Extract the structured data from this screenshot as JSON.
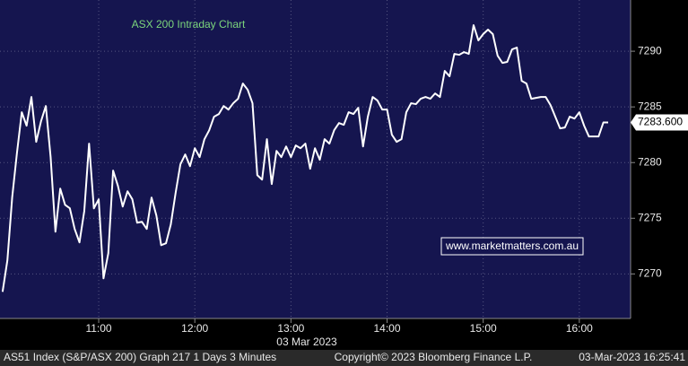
{
  "chart_data": {
    "type": "line",
    "title": "ASX 200 Intraday Chart",
    "watermark": "www.marketmatters.com.au",
    "x_date_label": "03 Mar 2023",
    "footer": {
      "security": "AS51 Index (S&P/ASX 200) Graph 217 1 Days 3 Minutes",
      "copyright": "Copyright© 2023 Bloomberg Finance L.P.",
      "timestamp": "03-Mar-2023 16:25:41"
    },
    "last_price": {
      "value": 7283.6,
      "label": "7283.600"
    },
    "x": [
      600,
      603,
      606,
      609,
      612,
      615,
      618,
      621,
      624,
      627,
      630,
      633,
      636,
      639,
      642,
      645,
      648,
      651,
      654,
      657,
      660,
      663,
      666,
      669,
      672,
      675,
      678,
      681,
      684,
      687,
      690,
      693,
      696,
      699,
      702,
      705,
      708,
      711,
      714,
      717,
      720,
      723,
      726,
      729,
      732,
      735,
      738,
      741,
      744,
      747,
      750,
      753,
      756,
      759,
      762,
      765,
      768,
      771,
      774,
      777,
      780,
      783,
      786,
      789,
      792,
      795,
      798,
      801,
      804,
      807,
      810,
      813,
      816,
      819,
      822,
      825,
      828,
      831,
      834,
      837,
      840,
      843,
      846,
      849,
      852,
      855,
      858,
      861,
      864,
      867,
      870,
      873,
      876,
      879,
      882,
      885,
      888,
      891,
      894,
      897,
      900,
      903,
      906,
      909,
      912,
      915,
      918,
      921,
      924,
      927,
      930,
      933,
      936,
      939,
      942,
      945,
      948,
      951,
      954,
      957,
      960,
      963,
      966,
      969,
      972,
      975,
      978
    ],
    "series": [
      {
        "name": "AS51 Index",
        "color": "#ffffff",
        "values": [
          7268.39,
          7271.21,
          7276.86,
          7280.89,
          7284.52,
          7283.31,
          7285.89,
          7281.86,
          7283.71,
          7285.08,
          7280.49,
          7273.79,
          7277.66,
          7276.21,
          7275.89,
          7274.04,
          7272.83,
          7275.65,
          7281.7,
          7275.89,
          7276.7,
          7269.6,
          7271.86,
          7279.28,
          7277.91,
          7276.05,
          7277.42,
          7276.7,
          7274.6,
          7274.68,
          7274.04,
          7276.86,
          7275.25,
          7272.58,
          7272.75,
          7274.44,
          7277.26,
          7279.84,
          7280.73,
          7279.68,
          7281.29,
          7280.49,
          7282.1,
          7282.91,
          7284.12,
          7284.36,
          7285.08,
          7284.76,
          7285.33,
          7285.73,
          7287.1,
          7286.54,
          7285.33,
          7278.87,
          7278.47,
          7282.1,
          7278.07,
          7281.05,
          7280.49,
          7281.45,
          7280.49,
          7281.54,
          7281.29,
          7281.7,
          7279.44,
          7281.29,
          7280.25,
          7282.1,
          7281.7,
          7282.91,
          7283.55,
          7283.39,
          7284.52,
          7284.36,
          7284.92,
          7281.45,
          7284.12,
          7285.89,
          7285.57,
          7284.76,
          7284.76,
          7282.5,
          7281.86,
          7282.1,
          7284.52,
          7285.33,
          7285.25,
          7285.73,
          7285.89,
          7285.73,
          7286.21,
          7285.89,
          7288.23,
          7287.75,
          7289.76,
          7289.68,
          7289.92,
          7289.76,
          7292.34,
          7290.97,
          7291.54,
          7291.94,
          7291.54,
          7289.6,
          7288.95,
          7289.04,
          7290.16,
          7290.33,
          7287.34,
          7287.1,
          7285.73,
          7285.81,
          7285.89,
          7285.89,
          7285.16,
          7284.12,
          7283.07,
          7283.15,
          7284.12,
          7283.95,
          7284.52,
          7283.31,
          7282.34,
          7282.34,
          7282.34,
          7283.6,
          7283.6
        ]
      }
    ],
    "xlim": [
      598.4,
      992
    ],
    "xticks": [
      {
        "value": 660,
        "label": "11:00"
      },
      {
        "value": 720,
        "label": "12:00"
      },
      {
        "value": 780,
        "label": "13:00"
      },
      {
        "value": 840,
        "label": "14:00"
      },
      {
        "value": 900,
        "label": "15:00"
      },
      {
        "value": 960,
        "label": "16:00"
      }
    ],
    "ylim": [
      7266,
      7294.6
    ],
    "yticks": [
      7270,
      7275,
      7280,
      7285,
      7290
    ],
    "grid": true
  }
}
